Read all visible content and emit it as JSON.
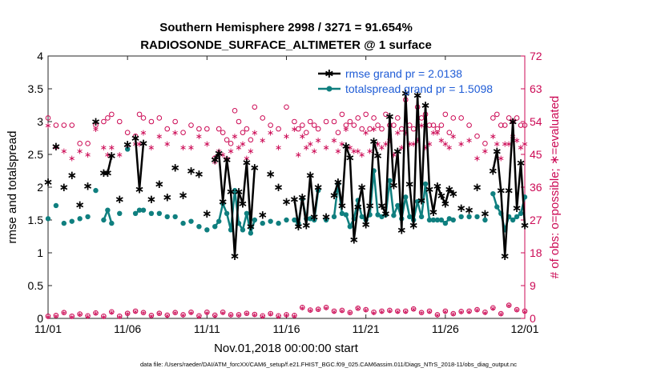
{
  "chart_data": {
    "type": "line",
    "title_line1": "Southern Hemisphere 2998 / 3271 = 91.654%",
    "title_line2": "RADIOSONDE_SURFACE_ALTIMETER @ 1 surface",
    "xlabel": "Nov.01,2018 00:00:00 start",
    "ylabel_left": "rmse and totalspread",
    "ylabel_right": "# of obs: o=possible; ∗=evaluated",
    "footer": "data file: /Users/raeder/DAI/ATM_forcXX/CAM6_setup/f.e21.FHIST_BGC.f09_025.CAM6assim.011/Diags_NTrS_2018-11/obs_diag_output.nc",
    "xlim": [
      0,
      30
    ],
    "ylim_left": [
      0,
      4
    ],
    "ylim_right": [
      0,
      72
    ],
    "x_ticks": [
      0,
      5,
      10,
      15,
      20,
      25,
      30
    ],
    "x_tick_labels": [
      "11/01",
      "11/06",
      "11/11",
      "11/16",
      "11/21",
      "11/26",
      "12/01"
    ],
    "y_left_ticks": [
      "0",
      "0.5",
      "1",
      "1.5",
      "2",
      "2.5",
      "3",
      "3.5",
      "4"
    ],
    "y_right_ticks": [
      "0",
      "9",
      "18",
      "27",
      "36",
      "45",
      "54",
      "63",
      "72"
    ],
    "colors": {
      "rmse": "#000000",
      "spread": "#0f7f7f",
      "obs": "#cc0a55",
      "legend_text": "#1f5cd6"
    },
    "series": [
      {
        "name": "rmse grand pr = 2.0138",
        "x": [
          0,
          0.5,
          1,
          1.5,
          2,
          2.5,
          3,
          3.5,
          3.75,
          4,
          4.5,
          5,
          5.5,
          5.75,
          6,
          6.5,
          7,
          7.5,
          8,
          8.5,
          9,
          9.5,
          10,
          10.5,
          10.75,
          11,
          11.25,
          11.5,
          11.75,
          12,
          12.25,
          12.5,
          12.75,
          13,
          13.5,
          14,
          14.5,
          15,
          15.5,
          15.75,
          16,
          16.25,
          16.5,
          16.75,
          17,
          17.5,
          18,
          18.25,
          18.5,
          18.75,
          19,
          19.25,
          19.5,
          19.75,
          20,
          20.25,
          20.5,
          20.75,
          21,
          21.25,
          21.5,
          21.75,
          22,
          22.25,
          22.5,
          22.75,
          23,
          23.25,
          23.5,
          23.75,
          24,
          24.25,
          24.5,
          24.75,
          25,
          25.25,
          25.5,
          26,
          26.5,
          27,
          27.5,
          28,
          28.25,
          28.5,
          28.75,
          29,
          29.25,
          29.5,
          29.75,
          30
        ],
        "values": [
          2.08,
          2.62,
          2.0,
          2.18,
          1.73,
          2.02,
          3.0,
          2.22,
          2.22,
          2.48,
          1.82,
          2.65,
          2.75,
          1.97,
          2.67,
          1.82,
          2.05,
          1.85,
          2.3,
          1.88,
          2.25,
          2.2,
          1.6,
          2.42,
          2.52,
          1.78,
          2.42,
          1.93,
          0.95,
          1.93,
          1.75,
          2.38,
          1.4,
          2.3,
          1.58,
          2.2,
          2.0,
          1.78,
          1.82,
          1.4,
          1.85,
          1.42,
          2.18,
          1.55,
          2.0,
          1.55,
          1.88,
          2.08,
          1.72,
          2.63,
          2.45,
          1.2,
          1.7,
          2.0,
          1.43,
          1.72,
          2.7,
          2.48,
          1.72,
          1.6,
          3.08,
          2.03,
          2.55,
          1.35,
          3.43,
          2.05,
          1.42,
          3.4,
          1.8,
          3.25,
          1.97,
          1.62,
          2.02,
          1.87,
          1.75,
          1.97,
          1.9,
          1.68,
          1.65,
          2.0,
          1.6,
          2.25,
          2.55,
          1.95,
          0.95,
          1.95,
          3.0,
          1.68,
          2.37,
          1.42
        ],
        "marker": "asterisk"
      },
      {
        "name": "totalspread grand pr = 1.5098",
        "x": [
          0,
          0.5,
          1,
          1.5,
          2,
          2.5,
          3,
          3.5,
          3.75,
          4,
          4.5,
          5,
          5.5,
          5.75,
          6,
          6.5,
          7,
          7.5,
          8,
          8.5,
          9,
          9.5,
          10,
          10.5,
          10.75,
          11,
          11.25,
          11.5,
          11.75,
          12,
          12.25,
          12.5,
          12.75,
          13,
          13.5,
          14,
          14.5,
          15,
          15.5,
          15.75,
          16,
          16.25,
          16.5,
          16.75,
          17,
          17.5,
          18,
          18.25,
          18.5,
          18.75,
          19,
          19.25,
          19.5,
          19.75,
          20,
          20.25,
          20.5,
          20.75,
          21,
          21.25,
          21.5,
          21.75,
          22,
          22.25,
          22.5,
          22.75,
          23,
          23.25,
          23.5,
          23.75,
          24,
          24.25,
          24.5,
          24.75,
          25,
          25.25,
          25.5,
          26,
          26.5,
          27,
          27.5,
          28,
          28.25,
          28.5,
          28.75,
          29,
          29.25,
          29.5,
          29.75,
          30
        ],
        "values": [
          1.52,
          1.72,
          1.45,
          1.48,
          1.52,
          1.55,
          1.95,
          1.5,
          1.65,
          1.45,
          1.6,
          2.58,
          1.6,
          1.65,
          1.65,
          1.6,
          1.6,
          1.55,
          1.55,
          1.45,
          1.48,
          1.4,
          1.35,
          1.4,
          1.48,
          1.75,
          1.6,
          1.35,
          1.95,
          1.45,
          1.35,
          1.6,
          1.3,
          1.5,
          1.45,
          1.48,
          1.45,
          1.5,
          1.5,
          1.45,
          1.82,
          1.52,
          1.52,
          1.5,
          1.95,
          1.5,
          1.55,
          2.05,
          1.6,
          1.58,
          1.4,
          1.52,
          1.8,
          1.55,
          1.5,
          1.58,
          2.25,
          1.58,
          1.55,
          1.58,
          2.1,
          1.57,
          1.72,
          1.52,
          1.85,
          1.55,
          1.5,
          1.78,
          1.55,
          2.05,
          1.5,
          1.5,
          1.5,
          1.5,
          1.45,
          1.52,
          1.5,
          1.55,
          1.55,
          1.55,
          1.5,
          1.9,
          1.7,
          1.6,
          1.35,
          1.55,
          1.5,
          1.55,
          1.6,
          1.85
        ],
        "marker": "circle"
      },
      {
        "name": "possible obs",
        "x": [
          0,
          0.5,
          1,
          1.5,
          2,
          2.5,
          3,
          3.5,
          3.75,
          4,
          4.5,
          5,
          5.5,
          5.75,
          6,
          6.5,
          7,
          7.5,
          8,
          8.5,
          9,
          9.5,
          10,
          10.5,
          10.75,
          11,
          11.25,
          11.5,
          11.75,
          12,
          12.25,
          12.5,
          12.75,
          13,
          13.5,
          14,
          14.5,
          15,
          15.5,
          15.75,
          16,
          16.25,
          16.5,
          16.75,
          17,
          17.5,
          18,
          18.25,
          18.5,
          18.75,
          19,
          19.25,
          19.5,
          19.75,
          20,
          20.25,
          20.5,
          20.75,
          21,
          21.25,
          21.5,
          21.75,
          22,
          22.25,
          22.5,
          22.75,
          23,
          23.25,
          23.5,
          23.75,
          24,
          24.25,
          24.5,
          24.75,
          25,
          25.25,
          25.5,
          26,
          26.5,
          27,
          27.5,
          28,
          28.25,
          28.5,
          28.75,
          29,
          29.25,
          29.5,
          29.75,
          30
        ],
        "values": [
          55,
          53,
          53,
          53,
          48,
          48,
          53,
          54,
          55,
          56,
          54,
          51,
          50,
          56,
          55,
          54,
          55,
          52,
          54,
          51,
          53,
          52,
          52,
          44,
          52,
          51,
          49,
          48,
          57,
          54,
          51,
          52,
          49,
          58,
          55,
          53,
          52,
          58,
          54,
          52,
          53,
          51,
          54,
          53,
          52,
          54,
          54,
          51,
          56,
          53,
          54,
          53,
          55,
          52,
          56,
          52,
          55,
          53,
          52,
          56,
          53,
          53,
          55,
          52,
          60,
          53,
          52,
          58,
          55,
          56,
          53,
          53,
          52,
          53,
          56,
          51,
          55,
          55,
          53,
          50,
          48,
          55,
          56,
          53,
          53,
          55,
          54,
          55,
          53,
          53
        ],
        "marker": "open-circle"
      },
      {
        "name": "evaluated obs",
        "x": [
          0,
          0.5,
          1,
          1.5,
          2,
          2.5,
          3,
          3.5,
          3.75,
          4,
          4.5,
          5,
          5.5,
          5.75,
          6,
          6.5,
          7,
          7.5,
          8,
          8.5,
          9,
          9.5,
          10,
          10.5,
          10.75,
          11,
          11.25,
          11.5,
          11.75,
          12,
          12.25,
          12.5,
          12.75,
          13,
          13.5,
          14,
          14.5,
          15,
          15.5,
          15.75,
          16,
          16.25,
          16.5,
          16.75,
          17,
          17.5,
          18,
          18.25,
          18.5,
          18.75,
          19,
          19.25,
          19.5,
          19.75,
          20,
          20.25,
          20.5,
          20.75,
          21,
          21.25,
          21.5,
          21.75,
          22,
          22.25,
          22.5,
          22.75,
          23,
          23.25,
          23.5,
          23.75,
          24,
          24.25,
          24.5,
          24.75,
          25,
          25.25,
          25.5,
          26,
          26.5,
          27,
          27.5,
          28,
          28.25,
          28.5,
          28.75,
          29,
          29.25,
          29.5,
          29.75,
          30
        ],
        "values": [
          53,
          47,
          46,
          44,
          46,
          45,
          52,
          47,
          45,
          47,
          45,
          47,
          48,
          48,
          51,
          47,
          50,
          48,
          51,
          47,
          47,
          50,
          48,
          43,
          46,
          45,
          44,
          46,
          50,
          47,
          48,
          44,
          46,
          51,
          49,
          51,
          47,
          50,
          52,
          45,
          50,
          47,
          48,
          46,
          49,
          47,
          49,
          46,
          48,
          52,
          47,
          46,
          46,
          45,
          51,
          46,
          52,
          48,
          47,
          48,
          49,
          45,
          51,
          47,
          51,
          48,
          48,
          49,
          53,
          47,
          48,
          51,
          51,
          49,
          48,
          47,
          50,
          48,
          49,
          44,
          46,
          50,
          48,
          44,
          48,
          48,
          50,
          49,
          47,
          48
        ],
        "marker": "asterisk"
      },
      {
        "name": "possible obs bottom",
        "x": [
          0,
          0.5,
          1,
          1.5,
          2,
          2.5,
          3,
          3.5,
          4,
          4.5,
          5,
          5.5,
          6,
          6.5,
          7,
          7.5,
          8,
          8.5,
          9,
          9.5,
          10,
          10.5,
          11,
          11.5,
          12,
          12.5,
          13,
          13.5,
          14,
          14.5,
          15,
          15.5,
          16,
          16.5,
          17,
          17.5,
          18,
          18.5,
          19,
          19.5,
          20,
          20.5,
          21,
          21.5,
          22,
          22.5,
          23,
          23.5,
          24,
          24.5,
          25,
          25.5,
          26,
          26.5,
          27,
          27.5,
          28,
          28.5,
          29,
          29.5,
          30
        ],
        "values": [
          0.6,
          0.8,
          1.6,
          0.6,
          1.2,
          0.7,
          1.5,
          0.6,
          1.8,
          0.6,
          1.4,
          2.0,
          1.6,
          0.8,
          1.4,
          0.9,
          1.6,
          1.0,
          1.7,
          0.7,
          1.7,
          0.9,
          1.7,
          1.0,
          1.0,
          1.4,
          1.1,
          0.7,
          1.3,
          0.7,
          1.0,
          0.8,
          3.0,
          2.3,
          2.5,
          3.0,
          2.0,
          2.2,
          1.6,
          2.8,
          2.4,
          1.7,
          2.0,
          2.2,
          2.0,
          2.0,
          2.6,
          1.6,
          2.0,
          1.0,
          2.0,
          1.3,
          1.9,
          2.0,
          2.4,
          1.7,
          2.9,
          1.3,
          3.6,
          2.4,
          2.0
        ],
        "marker": "open-circle"
      }
    ],
    "legend": {
      "location": "top-right",
      "entries": [
        "rmse grand pr = 2.0138",
        "totalspread grand pr = 1.5098"
      ]
    }
  }
}
